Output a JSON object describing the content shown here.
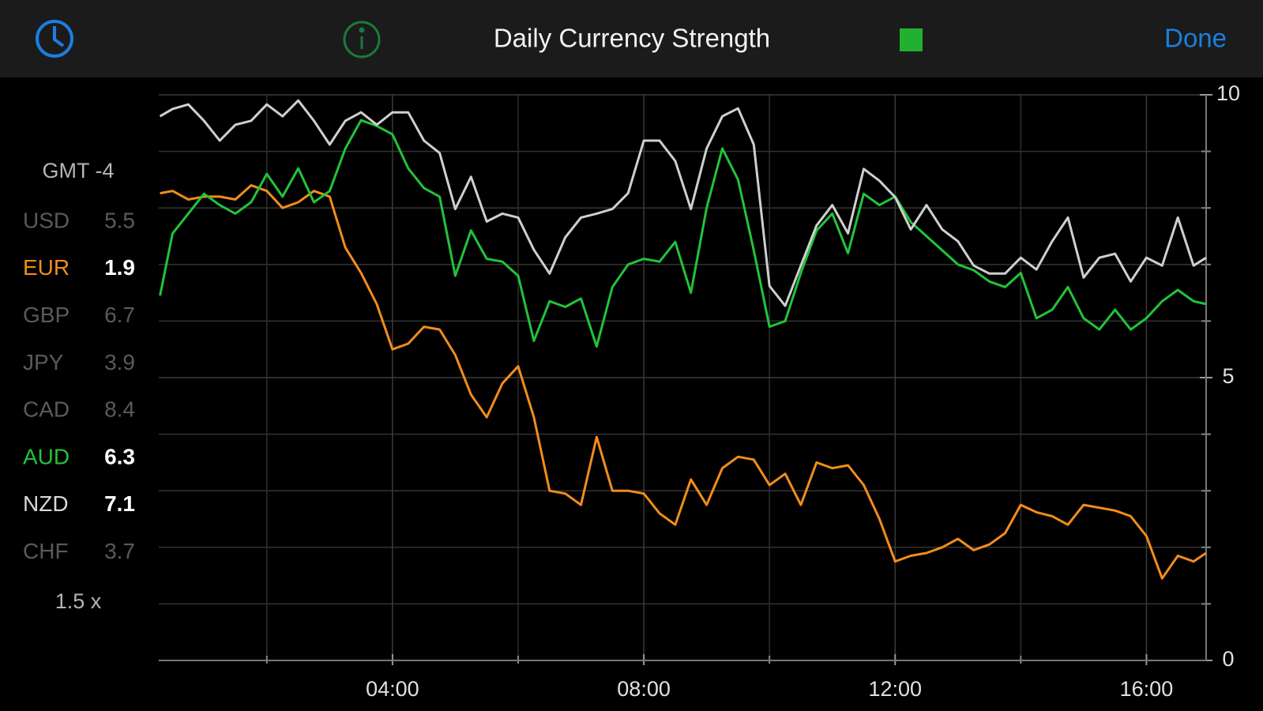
{
  "header": {
    "title": "Daily Currency Strength",
    "done": "Done"
  },
  "sidebar": {
    "timezone": "GMT -4",
    "rows": [
      {
        "name": "USD",
        "value": "5.5",
        "color": "#5a5a5a",
        "active": false
      },
      {
        "name": "EUR",
        "value": "1.9",
        "color": "#f28c1c",
        "active": true
      },
      {
        "name": "GBP",
        "value": "6.7",
        "color": "#5a5a5a",
        "active": false
      },
      {
        "name": "JPY",
        "value": "3.9",
        "color": "#5a5a5a",
        "active": false
      },
      {
        "name": "CAD",
        "value": "8.4",
        "color": "#5a5a5a",
        "active": false
      },
      {
        "name": "AUD",
        "value": "6.3",
        "color": "#22c33a",
        "active": true
      },
      {
        "name": "NZD",
        "value": "7.1",
        "color": "#d8d8d8",
        "active": true
      },
      {
        "name": "CHF",
        "value": "3.7",
        "color": "#5a5a5a",
        "active": false
      }
    ],
    "zoom": "1.5 x"
  },
  "chart_data": {
    "type": "line",
    "x": [
      0.3,
      0.5,
      0.75,
      1,
      1.25,
      1.5,
      1.75,
      2,
      2.25,
      2.5,
      2.75,
      3,
      3.25,
      3.5,
      3.75,
      4,
      4.25,
      4.5,
      4.75,
      5,
      5.25,
      5.5,
      5.75,
      6,
      6.25,
      6.5,
      6.75,
      7,
      7.25,
      7.5,
      7.75,
      8,
      8.25,
      8.5,
      8.75,
      9,
      9.25,
      9.5,
      9.75,
      10,
      10.25,
      10.5,
      10.75,
      11,
      11.25,
      11.5,
      11.75,
      12,
      12.25,
      12.5,
      12.75,
      13,
      13.25,
      13.5,
      13.75,
      14,
      14.25,
      14.5,
      14.75,
      15,
      15.25,
      15.5,
      15.75,
      16,
      16.25,
      16.5,
      16.75,
      16.95
    ],
    "series": [
      {
        "name": "EUR",
        "color": "#f28c1c",
        "values": [
          8.26,
          8.3,
          8.15,
          8.2,
          8.2,
          8.15,
          8.4,
          8.3,
          8.0,
          8.1,
          8.3,
          8.2,
          7.3,
          6.85,
          6.3,
          5.5,
          5.6,
          5.9,
          5.85,
          5.4,
          4.7,
          4.3,
          4.9,
          5.2,
          4.3,
          3.0,
          2.95,
          2.75,
          3.95,
          3.0,
          3.0,
          2.95,
          2.6,
          2.4,
          3.2,
          2.75,
          3.4,
          3.6,
          3.55,
          3.1,
          3.3,
          2.75,
          3.5,
          3.4,
          3.45,
          3.1,
          2.5,
          1.75,
          1.85,
          1.9,
          2.0,
          2.15,
          1.95,
          2.05,
          2.25,
          2.75,
          2.62,
          2.55,
          2.4,
          2.75,
          2.7,
          2.65,
          2.55,
          2.2,
          1.45,
          1.85,
          1.75,
          1.9
        ]
      },
      {
        "name": "AUD",
        "color": "#22c33a",
        "values": [
          6.45,
          7.55,
          7.9,
          8.25,
          8.05,
          7.9,
          8.1,
          8.6,
          8.2,
          8.7,
          8.1,
          8.3,
          9.05,
          9.55,
          9.45,
          9.3,
          8.7,
          8.35,
          8.2,
          6.8,
          7.6,
          7.1,
          7.05,
          6.8,
          5.65,
          6.35,
          6.25,
          6.4,
          5.55,
          6.6,
          7.0,
          7.1,
          7.05,
          7.4,
          6.5,
          8.0,
          9.05,
          8.5,
          7.25,
          5.9,
          6.0,
          6.85,
          7.6,
          7.9,
          7.2,
          8.25,
          8.05,
          8.2,
          7.75,
          7.5,
          7.25,
          7.0,
          6.9,
          6.7,
          6.6,
          6.85,
          6.05,
          6.2,
          6.6,
          6.05,
          5.85,
          6.2,
          5.85,
          6.05,
          6.35,
          6.55,
          6.35,
          6.3
        ]
      },
      {
        "name": "NZD",
        "color": "#cfcfcf",
        "values": [
          9.62,
          9.75,
          9.83,
          9.54,
          9.19,
          9.47,
          9.54,
          9.83,
          9.62,
          9.9,
          9.54,
          9.12,
          9.54,
          9.69,
          9.47,
          9.69,
          9.69,
          9.19,
          8.97,
          7.98,
          8.55,
          7.76,
          7.9,
          7.83,
          7.26,
          6.84,
          7.48,
          7.83,
          7.9,
          7.98,
          8.26,
          9.19,
          9.19,
          8.83,
          7.98,
          9.05,
          9.62,
          9.76,
          9.12,
          6.62,
          6.27,
          6.98,
          7.69,
          8.05,
          7.55,
          8.69,
          8.48,
          8.19,
          7.62,
          8.05,
          7.62,
          7.41,
          6.98,
          6.84,
          6.84,
          7.12,
          6.91,
          7.41,
          7.83,
          6.77,
          7.12,
          7.19,
          6.7,
          7.12,
          6.98,
          7.83,
          6.98,
          7.12
        ]
      }
    ],
    "xlim": [
      0.28,
      16.95
    ],
    "xticks": [
      {
        "value": 4,
        "label": "04:00"
      },
      {
        "value": 8,
        "label": "08:00"
      },
      {
        "value": 12,
        "label": "12:00"
      },
      {
        "value": 16,
        "label": "16:00"
      }
    ],
    "xminor": [
      2,
      6,
      10,
      14
    ],
    "ylim": [
      0,
      10
    ],
    "yticks": [
      0,
      5,
      10
    ],
    "yminor": [
      1,
      2,
      3,
      4,
      6,
      7,
      8,
      9
    ],
    "grid": true
  }
}
